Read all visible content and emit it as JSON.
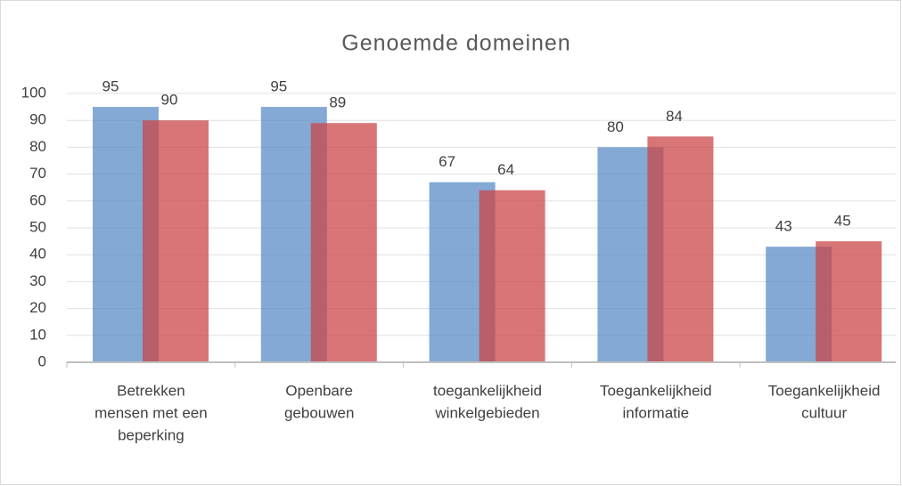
{
  "chart_data": {
    "type": "bar",
    "title": "Genoemde domeinen",
    "categories": [
      [
        "Betrekken",
        "mensen met een",
        "beperking"
      ],
      [
        "Openbare",
        "gebouwen"
      ],
      [
        "toegankelijkheid",
        "winkelgebieden"
      ],
      [
        "Toegankelijkheid",
        "informatie"
      ],
      [
        "Toegankelijkheid",
        "cultuur"
      ]
    ],
    "series": [
      {
        "color": "#5b8cc6",
        "values": [
          95,
          95,
          67,
          80,
          43
        ]
      },
      {
        "color": "#c9474a",
        "values": [
          90,
          89,
          64,
          84,
          45
        ]
      }
    ],
    "ylim": [
      0,
      100
    ],
    "yticks": [
      0,
      10,
      20,
      30,
      40,
      50,
      60,
      70,
      80,
      90,
      100
    ],
    "grid": true
  }
}
